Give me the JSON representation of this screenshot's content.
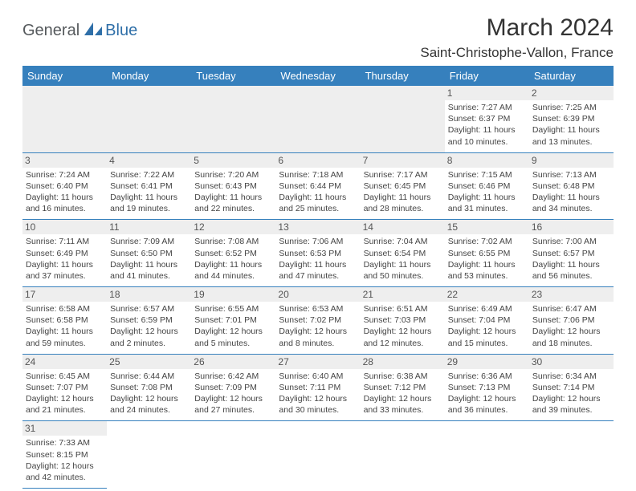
{
  "logo": {
    "text1": "General",
    "text2": "Blue"
  },
  "title": "March 2024",
  "location": "Saint-Christophe-Vallon, France",
  "columns": [
    "Sunday",
    "Monday",
    "Tuesday",
    "Wednesday",
    "Thursday",
    "Friday",
    "Saturday"
  ],
  "colors": {
    "header_bg": "#3680bd",
    "header_fg": "#ffffff",
    "daynum_bg": "#eeeeee",
    "border": "#3680bd",
    "text": "#333333"
  },
  "weeks": [
    [
      null,
      null,
      null,
      null,
      null,
      {
        "n": "1",
        "sr": "7:27 AM",
        "ss": "6:37 PM",
        "dl": "11 hours and 10 minutes."
      },
      {
        "n": "2",
        "sr": "7:25 AM",
        "ss": "6:39 PM",
        "dl": "11 hours and 13 minutes."
      }
    ],
    [
      {
        "n": "3",
        "sr": "7:24 AM",
        "ss": "6:40 PM",
        "dl": "11 hours and 16 minutes."
      },
      {
        "n": "4",
        "sr": "7:22 AM",
        "ss": "6:41 PM",
        "dl": "11 hours and 19 minutes."
      },
      {
        "n": "5",
        "sr": "7:20 AM",
        "ss": "6:43 PM",
        "dl": "11 hours and 22 minutes."
      },
      {
        "n": "6",
        "sr": "7:18 AM",
        "ss": "6:44 PM",
        "dl": "11 hours and 25 minutes."
      },
      {
        "n": "7",
        "sr": "7:17 AM",
        "ss": "6:45 PM",
        "dl": "11 hours and 28 minutes."
      },
      {
        "n": "8",
        "sr": "7:15 AM",
        "ss": "6:46 PM",
        "dl": "11 hours and 31 minutes."
      },
      {
        "n": "9",
        "sr": "7:13 AM",
        "ss": "6:48 PM",
        "dl": "11 hours and 34 minutes."
      }
    ],
    [
      {
        "n": "10",
        "sr": "7:11 AM",
        "ss": "6:49 PM",
        "dl": "11 hours and 37 minutes."
      },
      {
        "n": "11",
        "sr": "7:09 AM",
        "ss": "6:50 PM",
        "dl": "11 hours and 41 minutes."
      },
      {
        "n": "12",
        "sr": "7:08 AM",
        "ss": "6:52 PM",
        "dl": "11 hours and 44 minutes."
      },
      {
        "n": "13",
        "sr": "7:06 AM",
        "ss": "6:53 PM",
        "dl": "11 hours and 47 minutes."
      },
      {
        "n": "14",
        "sr": "7:04 AM",
        "ss": "6:54 PM",
        "dl": "11 hours and 50 minutes."
      },
      {
        "n": "15",
        "sr": "7:02 AM",
        "ss": "6:55 PM",
        "dl": "11 hours and 53 minutes."
      },
      {
        "n": "16",
        "sr": "7:00 AM",
        "ss": "6:57 PM",
        "dl": "11 hours and 56 minutes."
      }
    ],
    [
      {
        "n": "17",
        "sr": "6:58 AM",
        "ss": "6:58 PM",
        "dl": "11 hours and 59 minutes."
      },
      {
        "n": "18",
        "sr": "6:57 AM",
        "ss": "6:59 PM",
        "dl": "12 hours and 2 minutes."
      },
      {
        "n": "19",
        "sr": "6:55 AM",
        "ss": "7:01 PM",
        "dl": "12 hours and 5 minutes."
      },
      {
        "n": "20",
        "sr": "6:53 AM",
        "ss": "7:02 PM",
        "dl": "12 hours and 8 minutes."
      },
      {
        "n": "21",
        "sr": "6:51 AM",
        "ss": "7:03 PM",
        "dl": "12 hours and 12 minutes."
      },
      {
        "n": "22",
        "sr": "6:49 AM",
        "ss": "7:04 PM",
        "dl": "12 hours and 15 minutes."
      },
      {
        "n": "23",
        "sr": "6:47 AM",
        "ss": "7:06 PM",
        "dl": "12 hours and 18 minutes."
      }
    ],
    [
      {
        "n": "24",
        "sr": "6:45 AM",
        "ss": "7:07 PM",
        "dl": "12 hours and 21 minutes."
      },
      {
        "n": "25",
        "sr": "6:44 AM",
        "ss": "7:08 PM",
        "dl": "12 hours and 24 minutes."
      },
      {
        "n": "26",
        "sr": "6:42 AM",
        "ss": "7:09 PM",
        "dl": "12 hours and 27 minutes."
      },
      {
        "n": "27",
        "sr": "6:40 AM",
        "ss": "7:11 PM",
        "dl": "12 hours and 30 minutes."
      },
      {
        "n": "28",
        "sr": "6:38 AM",
        "ss": "7:12 PM",
        "dl": "12 hours and 33 minutes."
      },
      {
        "n": "29",
        "sr": "6:36 AM",
        "ss": "7:13 PM",
        "dl": "12 hours and 36 minutes."
      },
      {
        "n": "30",
        "sr": "6:34 AM",
        "ss": "7:14 PM",
        "dl": "12 hours and 39 minutes."
      }
    ],
    [
      {
        "n": "31",
        "sr": "7:33 AM",
        "ss": "8:15 PM",
        "dl": "12 hours and 42 minutes."
      },
      null,
      null,
      null,
      null,
      null,
      null
    ]
  ],
  "labels": {
    "sunrise": "Sunrise:",
    "sunset": "Sunset:",
    "daylight": "Daylight:"
  }
}
